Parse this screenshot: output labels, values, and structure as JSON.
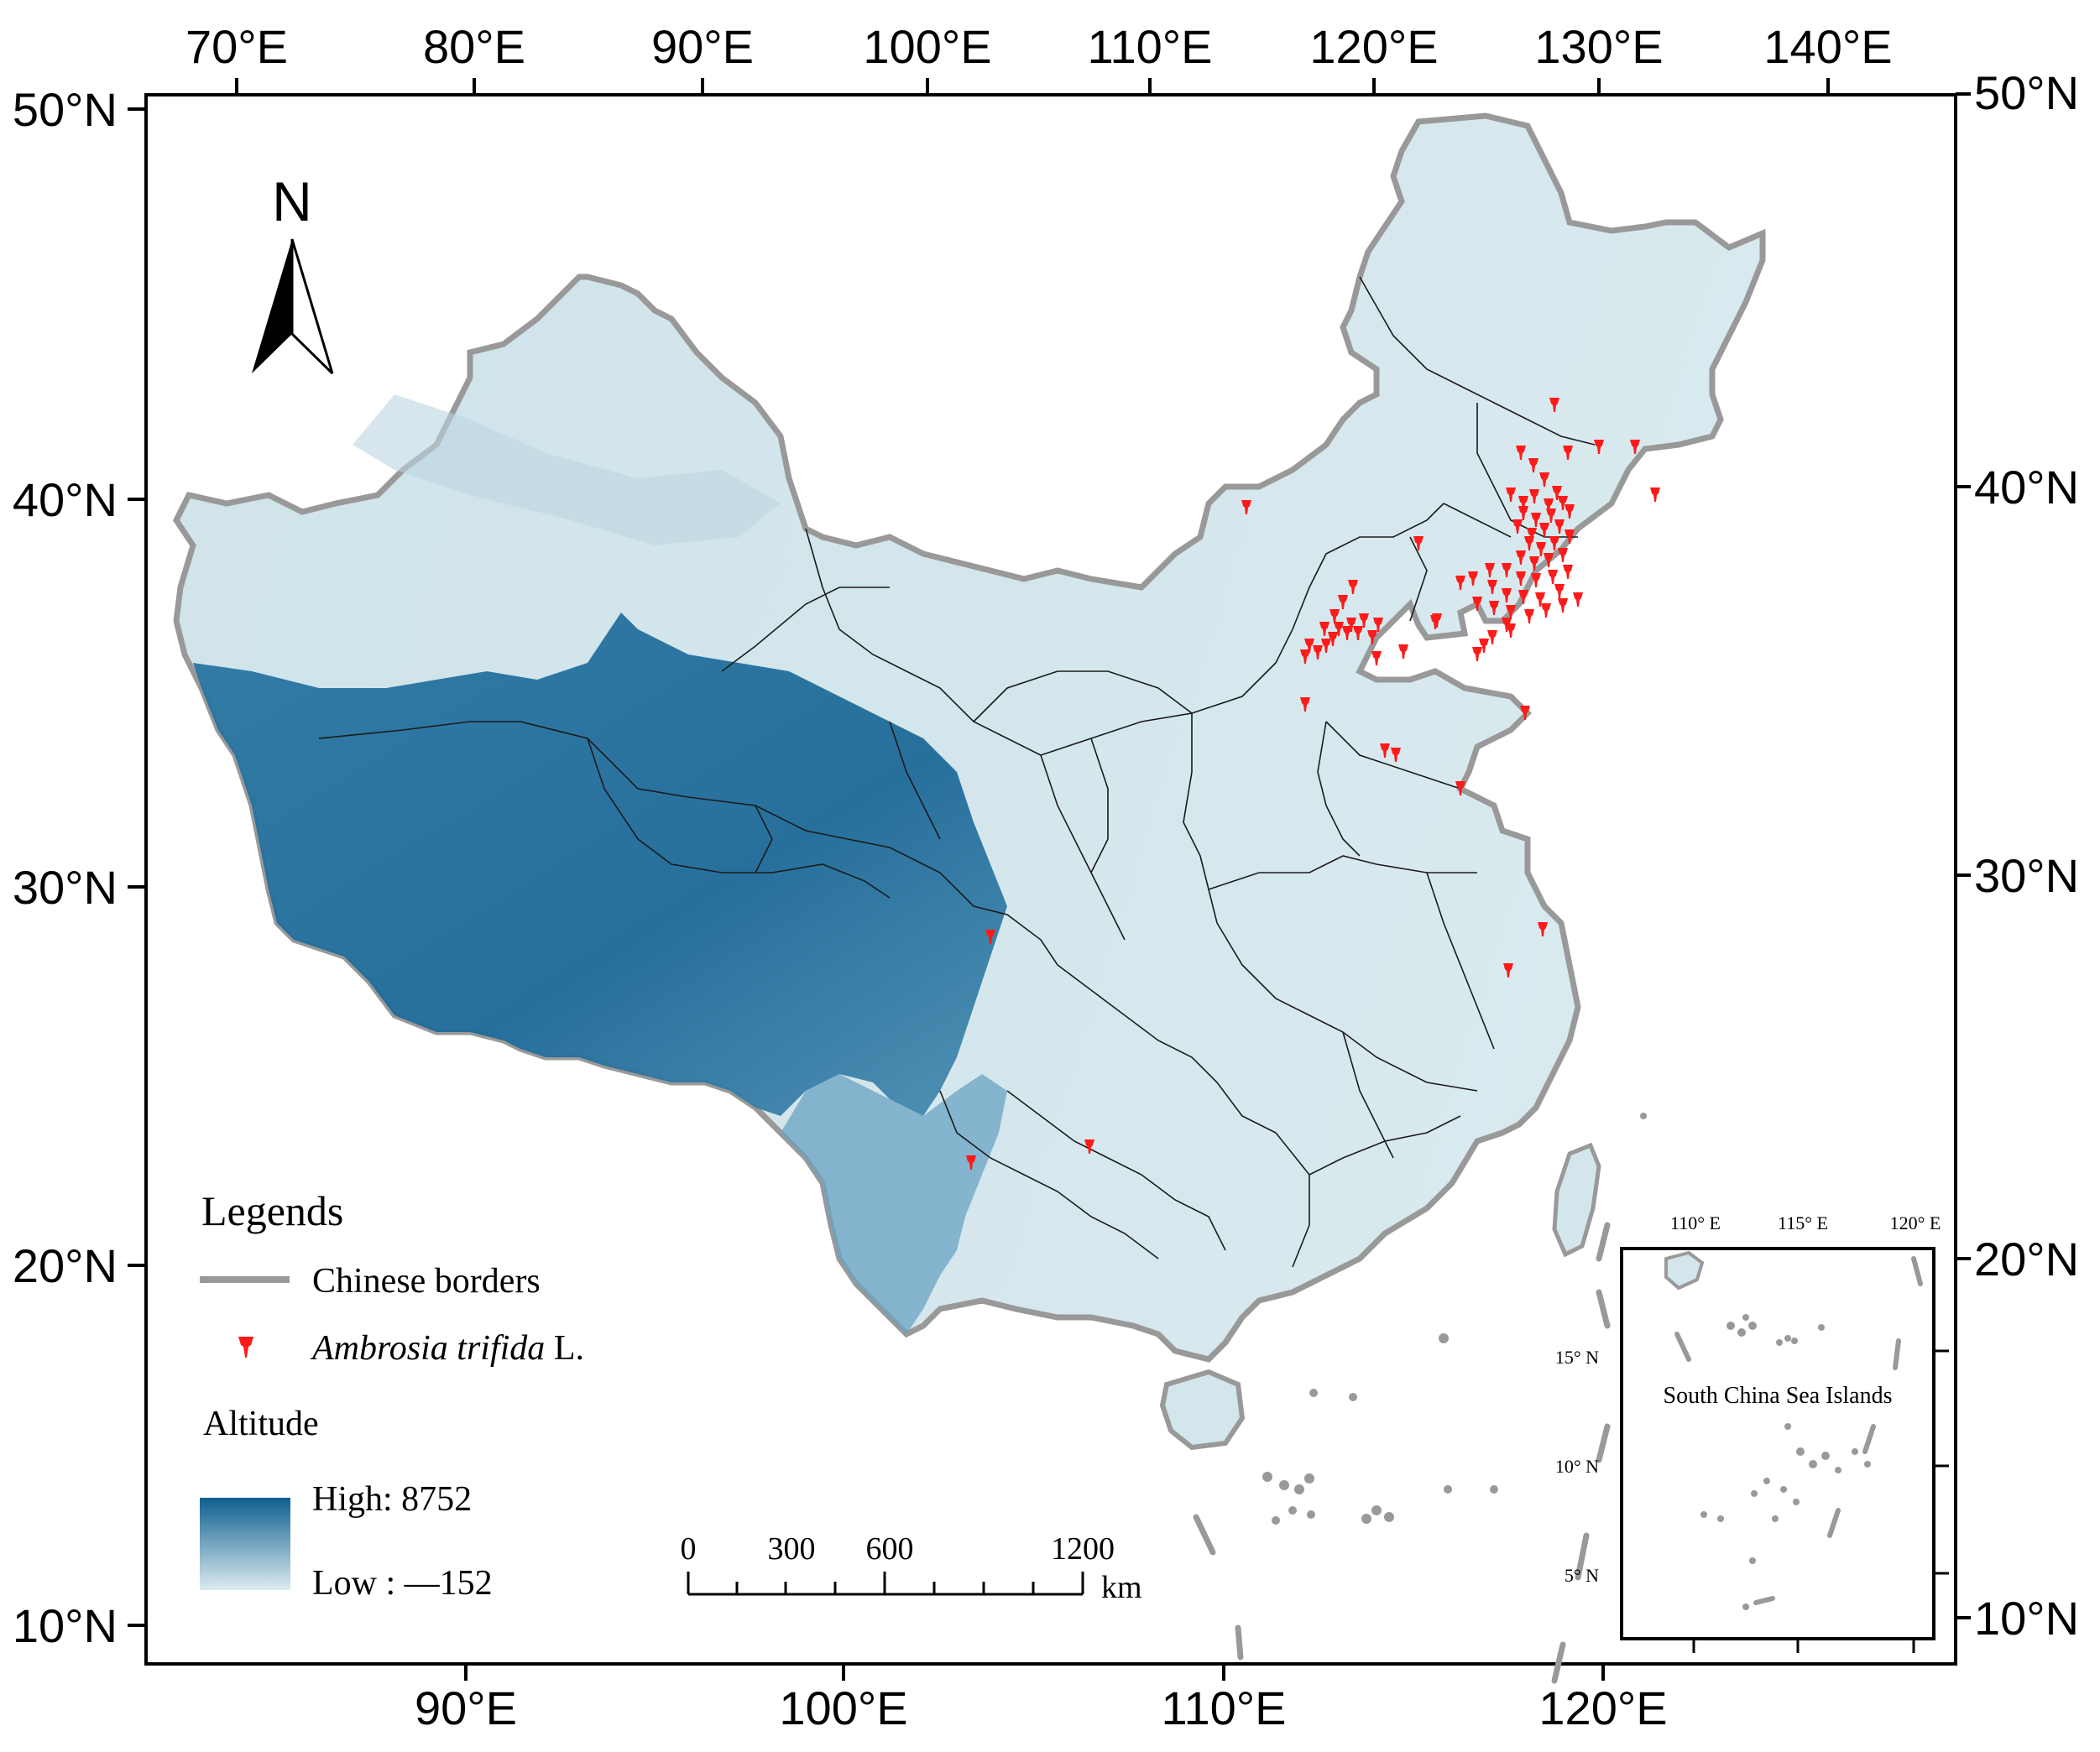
{
  "map": {
    "top_lon_labels": [
      "70°E",
      "80°E",
      "90°E",
      "100°E",
      "110°E",
      "120°E",
      "130°E",
      "140°E"
    ],
    "bottom_lon_labels": [
      "90°E",
      "100°E",
      "110°E",
      "120°E"
    ],
    "left_lat_labels": [
      "50°N",
      "40°N",
      "30°N",
      "20°N",
      "10°N"
    ],
    "right_lat_labels": [
      "50°N",
      "40°N",
      "30°N",
      "20°N",
      "10°N"
    ],
    "north_arrow_label": "N",
    "colors": {
      "altitude_high": "#0e5f8f",
      "altitude_low": "#dcebf0",
      "occurrence": "#ff1a1a",
      "border": "#9b9b9b"
    }
  },
  "legend": {
    "title": "Legends",
    "border_label": "Chinese borders",
    "species_name": "Ambrosia trifida",
    "species_author": " L.",
    "altitude_title": "Altitude",
    "high_label": "High: 8752",
    "low_label": "Low : —152"
  },
  "scale_bar": {
    "labels": [
      "0",
      "300",
      "600",
      "1200"
    ],
    "unit": "km"
  },
  "inset": {
    "title": "South China Sea Islands",
    "lon_labels": [
      "110°  E",
      "115°  E",
      "120°  E"
    ],
    "lat_labels": [
      "15°  N",
      "10°  N",
      "5°  N"
    ]
  }
}
